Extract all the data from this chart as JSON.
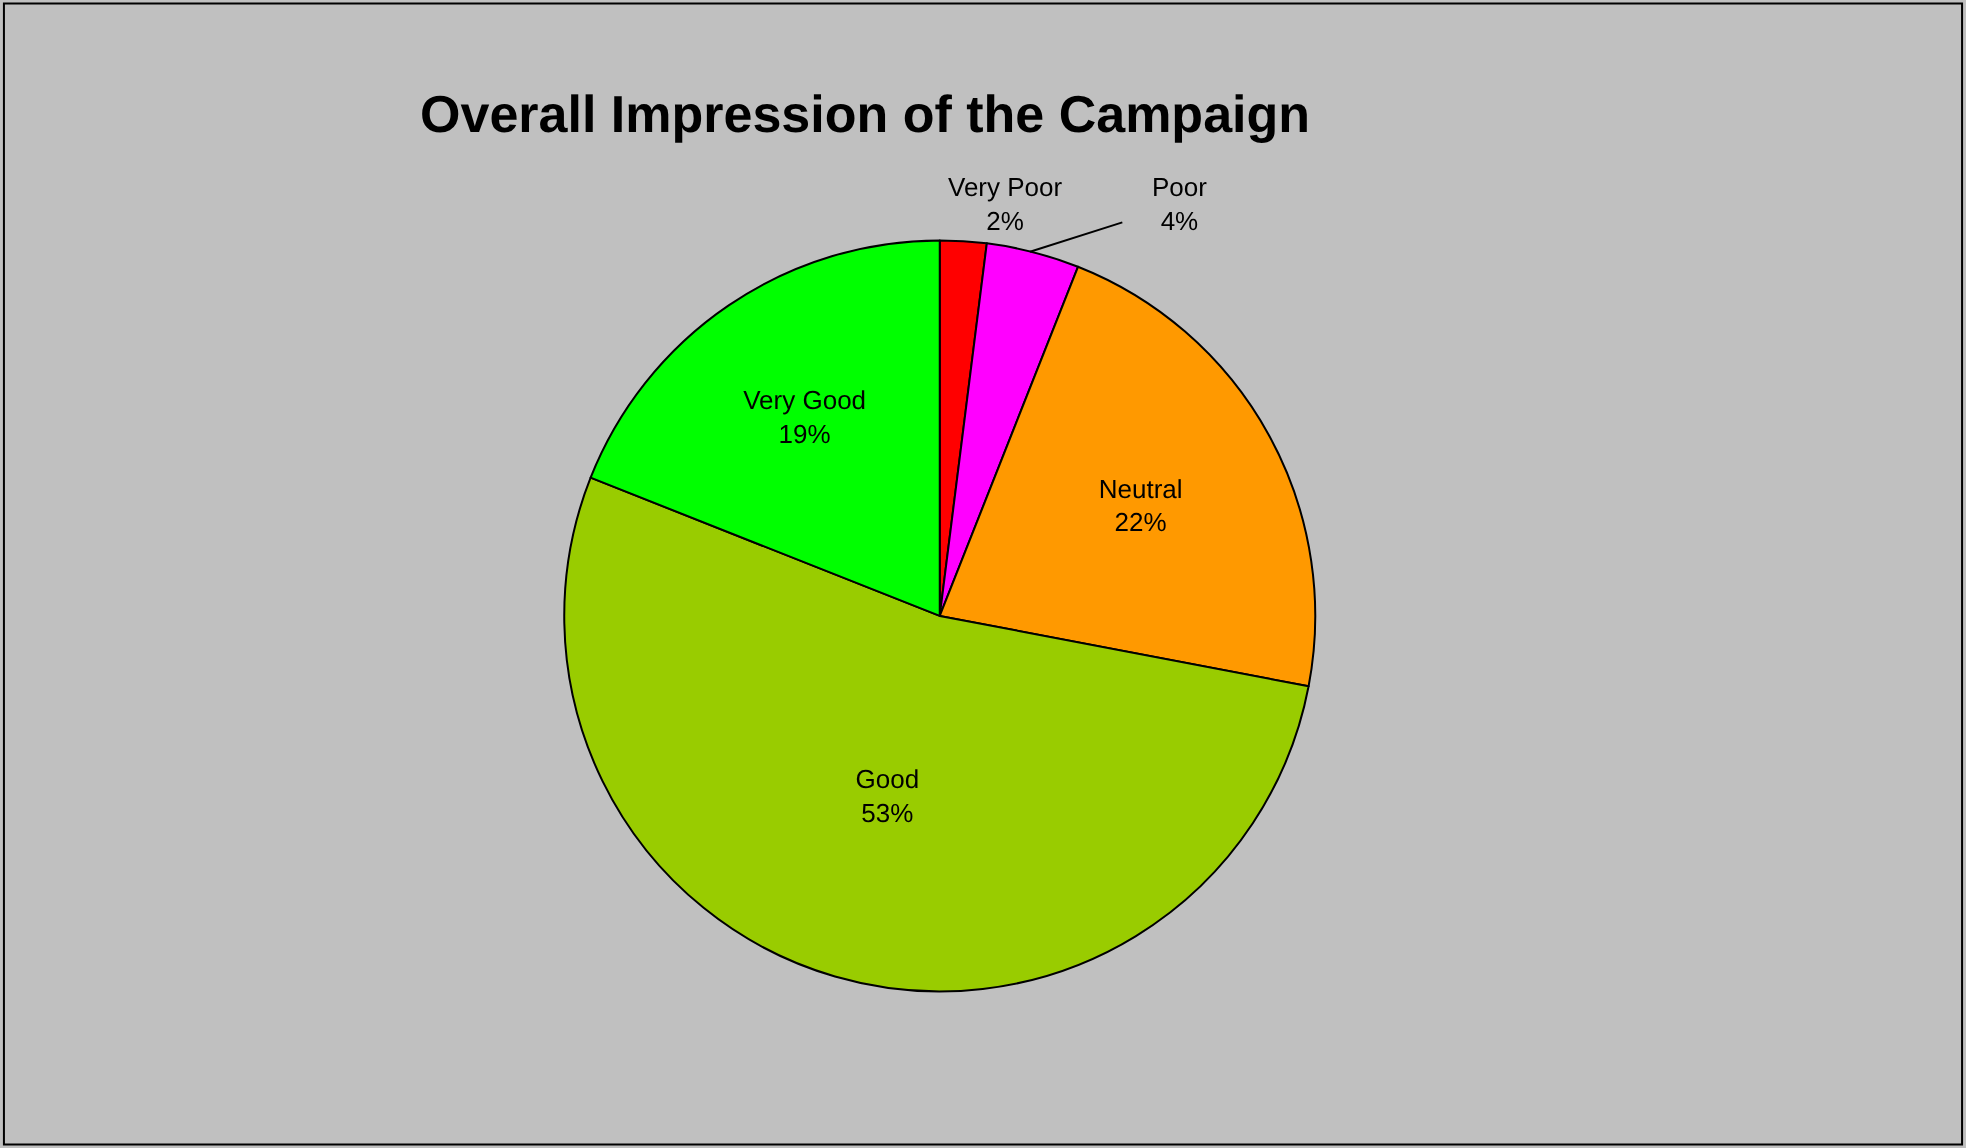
{
  "chart_data": {
    "type": "pie",
    "title": "Overall Impression of the Campaign",
    "categories": [
      "Very Poor",
      "Poor",
      "Neutral",
      "Good",
      "Very Good"
    ],
    "values": [
      2,
      4,
      22,
      53,
      19
    ],
    "colors": [
      "#ff0000",
      "#ff00ff",
      "#ff9900",
      "#99cc00",
      "#00ff00"
    ],
    "value_labels": [
      "2%",
      "4%",
      "22%",
      "53%",
      "19%"
    ],
    "legend": false
  }
}
